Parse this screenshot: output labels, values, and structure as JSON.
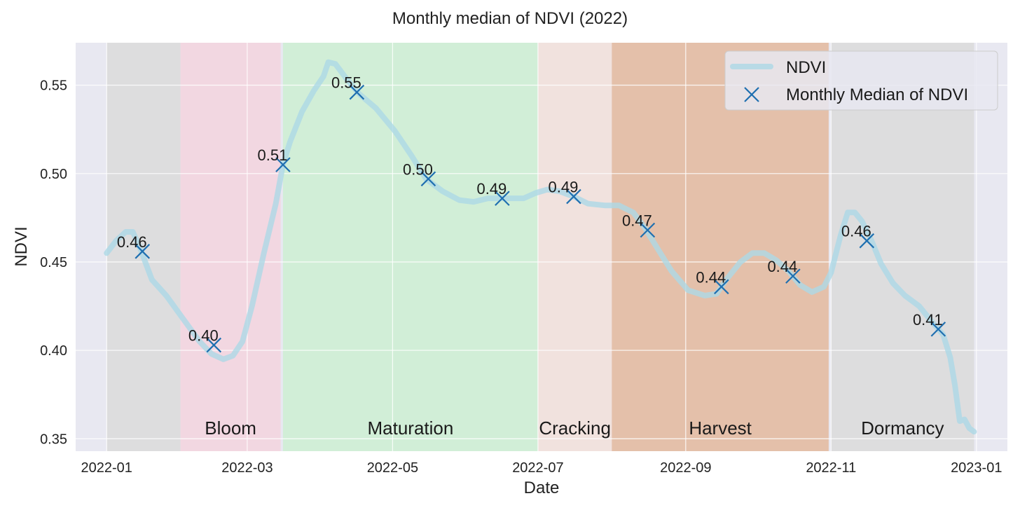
{
  "chart_data": {
    "type": "line",
    "title": "Monthly median of NDVI (2022)",
    "xlabel": "Date",
    "ylabel": "NDVI",
    "xlim": [
      "2021-12-19",
      "2023-01-14"
    ],
    "ylim": [
      0.343,
      0.574
    ],
    "xticks": [
      "2022-01",
      "2022-03",
      "2022-05",
      "2022-07",
      "2022-09",
      "2022-11",
      "2023-01"
    ],
    "yticks": [
      "0.35",
      "0.40",
      "0.45",
      "0.50",
      "0.55"
    ],
    "grid": true,
    "legend": {
      "position": "top-right",
      "entries": [
        "NDVI",
        "Monthly Median of NDVI"
      ]
    },
    "seasons": [
      {
        "label": "",
        "start": "2022-01-01",
        "end": "2022-02-01",
        "color": "#dadada"
      },
      {
        "label": "Bloom",
        "start": "2022-02-01",
        "end": "2022-03-15",
        "color": "#f3d3de"
      },
      {
        "label": "Maturation",
        "start": "2022-03-16",
        "end": "2022-07-01",
        "color": "#cdeed2"
      },
      {
        "label": "Cracking",
        "start": "2022-07-01",
        "end": "2022-08-01",
        "color": "#f2e0db"
      },
      {
        "label": "Harvest",
        "start": "2022-08-01",
        "end": "2022-10-31",
        "color": "#e3b99e"
      },
      {
        "label": "Dormancy",
        "start": "2022-11-01",
        "end": "2022-12-31",
        "color": "#dadada"
      }
    ],
    "series": [
      {
        "name": "NDVI",
        "type": "line",
        "color": "#add8e6",
        "points": [
          [
            "2022-01-01",
            0.455
          ],
          [
            "2022-01-05",
            0.462
          ],
          [
            "2022-01-09",
            0.467
          ],
          [
            "2022-01-12",
            0.467
          ],
          [
            "2022-01-15",
            0.458
          ],
          [
            "2022-01-20",
            0.44
          ],
          [
            "2022-01-26",
            0.431
          ],
          [
            "2022-02-02",
            0.418
          ],
          [
            "2022-02-09",
            0.405
          ],
          [
            "2022-02-14",
            0.398
          ],
          [
            "2022-02-19",
            0.395
          ],
          [
            "2022-02-23",
            0.397
          ],
          [
            "2022-02-27",
            0.405
          ],
          [
            "2022-03-03",
            0.425
          ],
          [
            "2022-03-08",
            0.455
          ],
          [
            "2022-03-13",
            0.483
          ],
          [
            "2022-03-16",
            0.505
          ],
          [
            "2022-03-19",
            0.518
          ],
          [
            "2022-03-24",
            0.535
          ],
          [
            "2022-03-29",
            0.547
          ],
          [
            "2022-04-02",
            0.555
          ],
          [
            "2022-04-04",
            0.563
          ],
          [
            "2022-04-07",
            0.562
          ],
          [
            "2022-04-12",
            0.553
          ],
          [
            "2022-04-17",
            0.545
          ],
          [
            "2022-04-24",
            0.537
          ],
          [
            "2022-05-02",
            0.524
          ],
          [
            "2022-05-09",
            0.51
          ],
          [
            "2022-05-15",
            0.497
          ],
          [
            "2022-05-22",
            0.49
          ],
          [
            "2022-05-29",
            0.485
          ],
          [
            "2022-06-04",
            0.484
          ],
          [
            "2022-06-10",
            0.486
          ],
          [
            "2022-06-20",
            0.486
          ],
          [
            "2022-06-25",
            0.486
          ],
          [
            "2022-06-30",
            0.489
          ],
          [
            "2022-07-05",
            0.491
          ],
          [
            "2022-07-10",
            0.49
          ],
          [
            "2022-07-16",
            0.487
          ],
          [
            "2022-07-22",
            0.483
          ],
          [
            "2022-07-29",
            0.482
          ],
          [
            "2022-08-04",
            0.482
          ],
          [
            "2022-08-10",
            0.478
          ],
          [
            "2022-08-15",
            0.469
          ],
          [
            "2022-08-20",
            0.458
          ],
          [
            "2022-08-26",
            0.445
          ],
          [
            "2022-09-02",
            0.434
          ],
          [
            "2022-09-09",
            0.431
          ],
          [
            "2022-09-14",
            0.432
          ],
          [
            "2022-09-18",
            0.44
          ],
          [
            "2022-09-24",
            0.45
          ],
          [
            "2022-09-29",
            0.455
          ],
          [
            "2022-10-04",
            0.455
          ],
          [
            "2022-10-09",
            0.451
          ],
          [
            "2022-10-14",
            0.445
          ],
          [
            "2022-10-19",
            0.437
          ],
          [
            "2022-10-24",
            0.433
          ],
          [
            "2022-10-29",
            0.436
          ],
          [
            "2022-11-01",
            0.444
          ],
          [
            "2022-11-05",
            0.465
          ],
          [
            "2022-11-08",
            0.478
          ],
          [
            "2022-11-11",
            0.478
          ],
          [
            "2022-11-14",
            0.473
          ],
          [
            "2022-11-18",
            0.462
          ],
          [
            "2022-11-22",
            0.449
          ],
          [
            "2022-11-27",
            0.438
          ],
          [
            "2022-12-02",
            0.431
          ],
          [
            "2022-12-08",
            0.425
          ],
          [
            "2022-12-14",
            0.415
          ],
          [
            "2022-12-18",
            0.409
          ],
          [
            "2022-12-21",
            0.396
          ],
          [
            "2022-12-23",
            0.38
          ],
          [
            "2022-12-25",
            0.36
          ],
          [
            "2022-12-27",
            0.361
          ],
          [
            "2022-12-29",
            0.356
          ],
          [
            "2022-12-31",
            0.354
          ]
        ]
      },
      {
        "name": "Monthly Median of NDVI",
        "type": "scatter",
        "marker": "x",
        "color": "#1f6fb0",
        "points": [
          {
            "x": "2022-01-16",
            "y": 0.456,
            "label": "0.46"
          },
          {
            "x": "2022-02-15",
            "y": 0.403,
            "label": "0.40"
          },
          {
            "x": "2022-03-16",
            "y": 0.505,
            "label": "0.51"
          },
          {
            "x": "2022-04-16",
            "y": 0.546,
            "label": "0.55"
          },
          {
            "x": "2022-05-16",
            "y": 0.497,
            "label": "0.50"
          },
          {
            "x": "2022-06-16",
            "y": 0.486,
            "label": "0.49"
          },
          {
            "x": "2022-07-16",
            "y": 0.487,
            "label": "0.49"
          },
          {
            "x": "2022-08-16",
            "y": 0.468,
            "label": "0.47"
          },
          {
            "x": "2022-09-16",
            "y": 0.436,
            "label": "0.44"
          },
          {
            "x": "2022-10-16",
            "y": 0.442,
            "label": "0.44"
          },
          {
            "x": "2022-11-16",
            "y": 0.462,
            "label": "0.46"
          },
          {
            "x": "2022-12-16",
            "y": 0.412,
            "label": "0.41"
          }
        ]
      }
    ]
  }
}
